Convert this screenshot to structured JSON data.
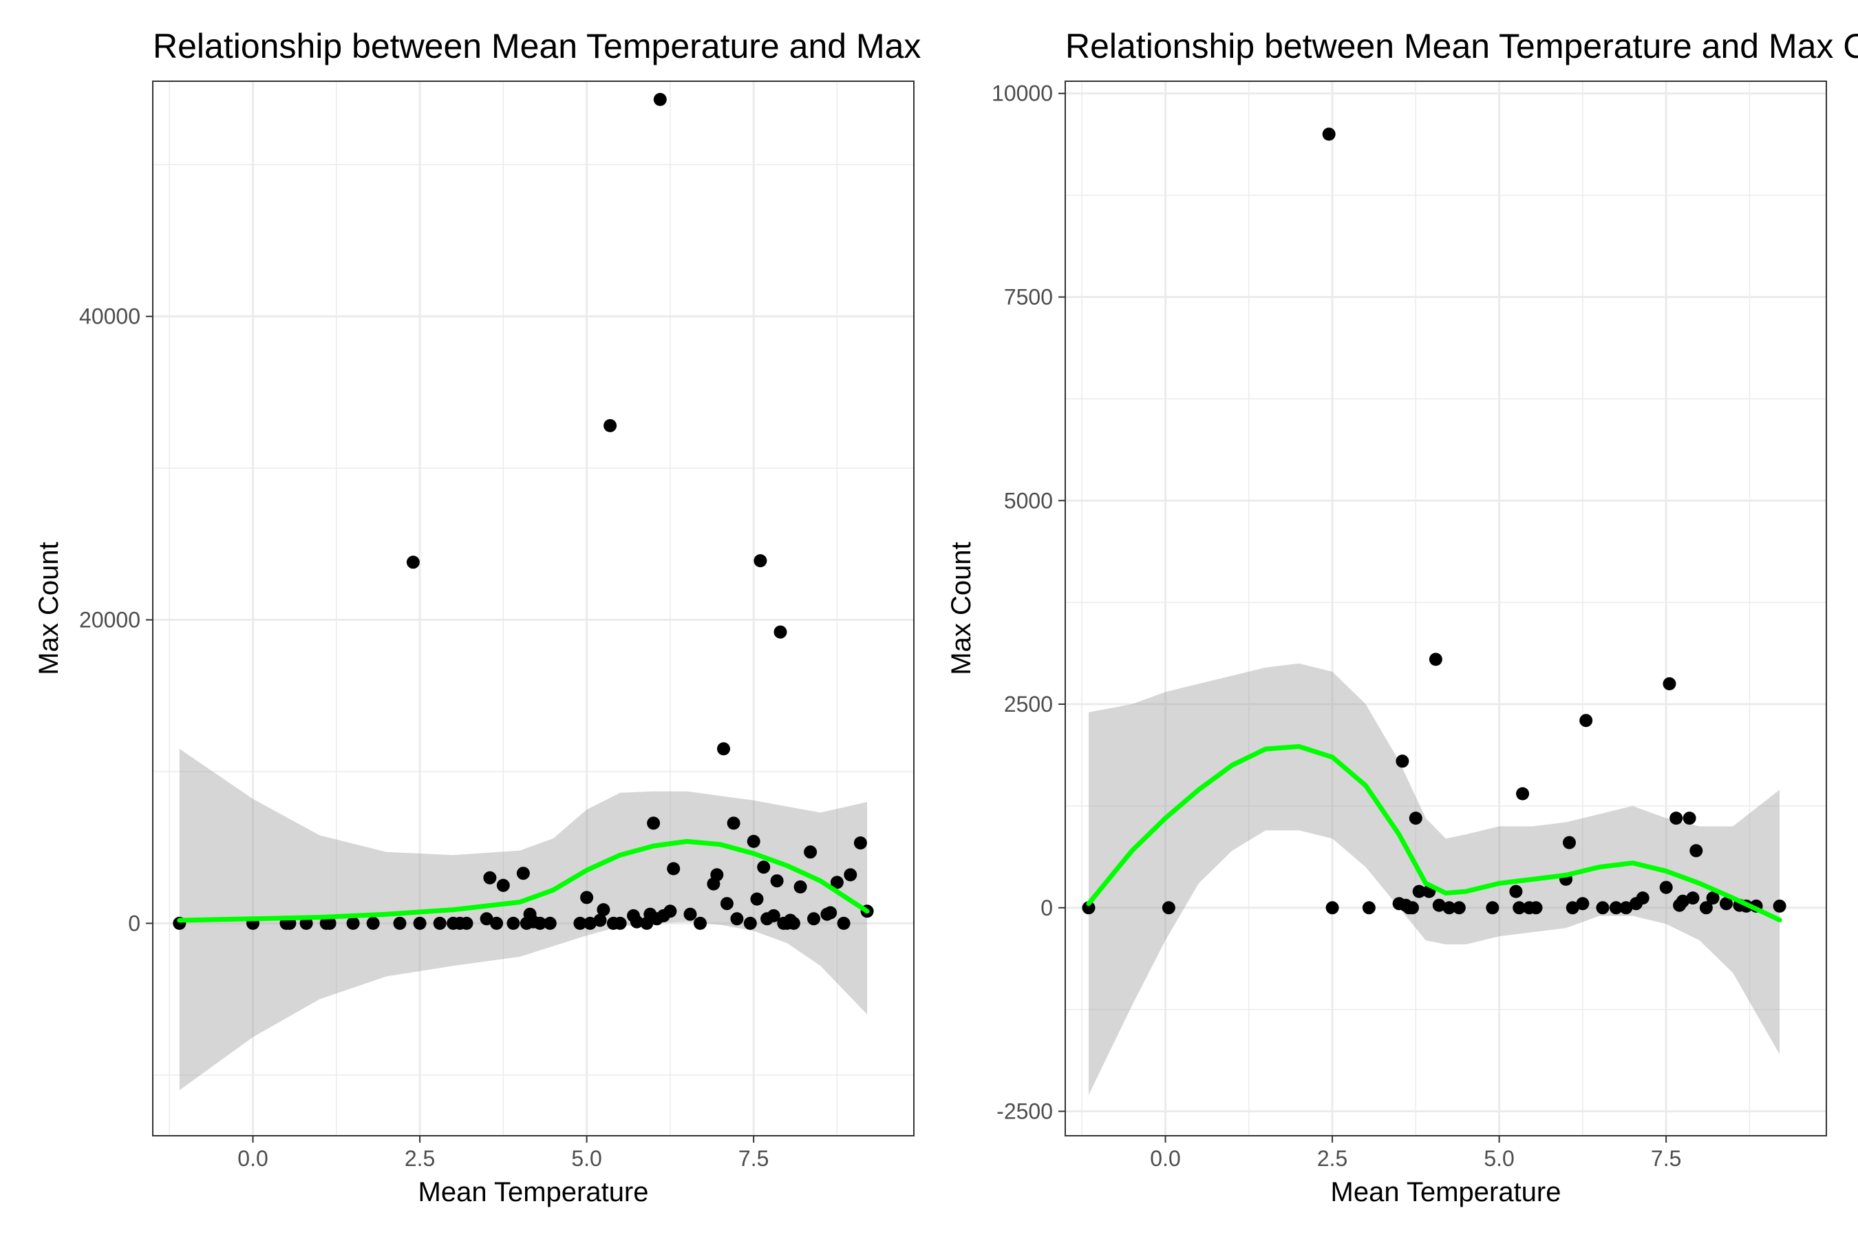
{
  "chart_data": [
    {
      "type": "scatter",
      "title": "Relationship between Mean Temperature and Max Count",
      "xlabel": "Mean Temperature",
      "ylabel": "Max Count",
      "xlim": [
        -1.5,
        9.9
      ],
      "ylim": [
        -14000,
        55500
      ],
      "x_ticks": [
        0.0,
        2.5,
        5.0,
        7.5
      ],
      "x_tick_labels": [
        "0.0",
        "2.5",
        "5.0",
        "7.5"
      ],
      "y_ticks": [
        0,
        20000,
        40000
      ],
      "y_tick_labels": [
        "0",
        "20000",
        "40000"
      ],
      "grid": true,
      "legend": "none",
      "colors": {
        "points": "#000000",
        "smooth_line": "#00ff00",
        "confidence_band": "#999999",
        "panel_border": "#333333",
        "grid": "#ebebeb"
      },
      "points": [
        [
          -1.1,
          0
        ],
        [
          0.0,
          0
        ],
        [
          0.5,
          0
        ],
        [
          0.55,
          0
        ],
        [
          0.8,
          0
        ],
        [
          1.1,
          0
        ],
        [
          1.15,
          0
        ],
        [
          1.5,
          0
        ],
        [
          1.8,
          0
        ],
        [
          2.2,
          0
        ],
        [
          2.4,
          23800
        ],
        [
          2.5,
          0
        ],
        [
          2.8,
          0
        ],
        [
          3.0,
          0
        ],
        [
          3.1,
          0
        ],
        [
          3.2,
          0
        ],
        [
          3.5,
          300
        ],
        [
          3.55,
          3000
        ],
        [
          3.65,
          0
        ],
        [
          3.75,
          2500
        ],
        [
          3.9,
          0
        ],
        [
          4.05,
          3300
        ],
        [
          4.1,
          0
        ],
        [
          4.15,
          600
        ],
        [
          4.2,
          100
        ],
        [
          4.3,
          0
        ],
        [
          4.45,
          0
        ],
        [
          4.9,
          0
        ],
        [
          5.0,
          1700
        ],
        [
          5.05,
          0
        ],
        [
          5.2,
          200
        ],
        [
          5.25,
          900
        ],
        [
          5.35,
          32800
        ],
        [
          5.4,
          0
        ],
        [
          5.5,
          0
        ],
        [
          5.7,
          500
        ],
        [
          5.75,
          100
        ],
        [
          5.9,
          0
        ],
        [
          5.95,
          600
        ],
        [
          6.0,
          6600
        ],
        [
          6.05,
          300
        ],
        [
          6.1,
          54300
        ],
        [
          6.15,
          500
        ],
        [
          6.25,
          800
        ],
        [
          6.3,
          3600
        ],
        [
          6.55,
          600
        ],
        [
          6.7,
          0
        ],
        [
          6.9,
          2600
        ],
        [
          6.95,
          3200
        ],
        [
          7.05,
          11500
        ],
        [
          7.1,
          1300
        ],
        [
          7.2,
          6600
        ],
        [
          7.25,
          300
        ],
        [
          7.45,
          0
        ],
        [
          7.5,
          5400
        ],
        [
          7.55,
          1600
        ],
        [
          7.6,
          23900
        ],
        [
          7.65,
          3700
        ],
        [
          7.7,
          300
        ],
        [
          7.8,
          500
        ],
        [
          7.85,
          2800
        ],
        [
          7.9,
          19200
        ],
        [
          7.95,
          0
        ],
        [
          8.0,
          0
        ],
        [
          8.05,
          200
        ],
        [
          8.1,
          0
        ],
        [
          8.2,
          2400
        ],
        [
          8.35,
          4700
        ],
        [
          8.4,
          300
        ],
        [
          8.6,
          600
        ],
        [
          8.65,
          700
        ],
        [
          8.75,
          2700
        ],
        [
          8.85,
          0
        ],
        [
          8.95,
          3200
        ],
        [
          9.1,
          5300
        ],
        [
          9.2,
          800
        ]
      ],
      "smooth": {
        "x": [
          -1.1,
          0.0,
          1.0,
          2.0,
          3.0,
          4.0,
          4.5,
          5.0,
          5.5,
          6.0,
          6.5,
          7.0,
          7.5,
          8.0,
          8.5,
          9.2
        ],
        "y": [
          200,
          300,
          400,
          600,
          900,
          1400,
          2200,
          3500,
          4500,
          5100,
          5400,
          5200,
          4600,
          3800,
          2800,
          800
        ],
        "lower": [
          -11000,
          -7500,
          -5000,
          -3500,
          -2800,
          -2200,
          -1500,
          -800,
          -200,
          0,
          100,
          -100,
          -500,
          -1300,
          -2800,
          -6000
        ],
        "upper": [
          11500,
          8200,
          5800,
          4700,
          4500,
          4800,
          5600,
          7500,
          8600,
          8700,
          8700,
          8400,
          8100,
          7700,
          7300,
          8000
        ]
      }
    },
    {
      "type": "scatter",
      "title": "Relationship between Mean Temperature and Max Count",
      "xlabel": "Mean Temperature",
      "ylabel": "Max Count",
      "xlim": [
        -1.5,
        9.9
      ],
      "ylim": [
        -2800,
        10150
      ],
      "x_ticks": [
        0.0,
        2.5,
        5.0,
        7.5
      ],
      "x_tick_labels": [
        "0.0",
        "2.5",
        "5.0",
        "7.5"
      ],
      "y_ticks": [
        -2500,
        0,
        2500,
        5000,
        7500,
        10000
      ],
      "y_tick_labels": [
        "-2500",
        "0",
        "2500",
        "5000",
        "7500",
        "10000"
      ],
      "grid": true,
      "legend": "none",
      "colors": {
        "points": "#000000",
        "smooth_line": "#00ff00",
        "confidence_band": "#999999",
        "panel_border": "#333333",
        "grid": "#ebebeb"
      },
      "points": [
        [
          -1.15,
          0
        ],
        [
          0.05,
          0
        ],
        [
          2.45,
          9500
        ],
        [
          2.5,
          0
        ],
        [
          3.05,
          0
        ],
        [
          3.5,
          50
        ],
        [
          3.55,
          1800
        ],
        [
          3.6,
          30
        ],
        [
          3.65,
          0
        ],
        [
          3.7,
          0
        ],
        [
          3.75,
          1100
        ],
        [
          3.8,
          200
        ],
        [
          3.95,
          200
        ],
        [
          4.05,
          3050
        ],
        [
          4.1,
          30
        ],
        [
          4.25,
          0
        ],
        [
          4.4,
          0
        ],
        [
          4.9,
          0
        ],
        [
          5.25,
          200
        ],
        [
          5.3,
          0
        ],
        [
          5.35,
          1400
        ],
        [
          5.45,
          0
        ],
        [
          5.55,
          0
        ],
        [
          6.0,
          350
        ],
        [
          6.05,
          800
        ],
        [
          6.1,
          0
        ],
        [
          6.25,
          50
        ],
        [
          6.3,
          2300
        ],
        [
          6.55,
          0
        ],
        [
          6.75,
          0
        ],
        [
          6.9,
          0
        ],
        [
          7.05,
          50
        ],
        [
          7.15,
          120
        ],
        [
          7.5,
          250
        ],
        [
          7.55,
          2750
        ],
        [
          7.65,
          1100
        ],
        [
          7.7,
          30
        ],
        [
          7.75,
          80
        ],
        [
          7.85,
          1100
        ],
        [
          7.9,
          120
        ],
        [
          7.95,
          700
        ],
        [
          8.1,
          0
        ],
        [
          8.2,
          120
        ],
        [
          8.4,
          50
        ],
        [
          8.6,
          30
        ],
        [
          8.7,
          20
        ],
        [
          8.85,
          20
        ],
        [
          9.2,
          20
        ]
      ],
      "smooth": {
        "x": [
          -1.15,
          -0.5,
          0.0,
          0.5,
          1.0,
          1.5,
          2.0,
          2.5,
          3.0,
          3.5,
          3.9,
          4.2,
          4.5,
          5.0,
          5.5,
          6.0,
          6.5,
          7.0,
          7.5,
          8.0,
          8.5,
          9.2
        ],
        "y": [
          50,
          700,
          1100,
          1450,
          1750,
          1950,
          1980,
          1850,
          1500,
          900,
          300,
          180,
          200,
          300,
          350,
          400,
          500,
          550,
          450,
          300,
          120,
          -150
        ],
        "lower": [
          -2300,
          -1200,
          -400,
          300,
          700,
          950,
          950,
          850,
          500,
          0,
          -400,
          -450,
          -450,
          -350,
          -300,
          -250,
          -100,
          -100,
          -200,
          -400,
          -800,
          -1800
        ],
        "upper": [
          2400,
          2500,
          2650,
          2750,
          2850,
          2950,
          3000,
          2900,
          2500,
          1800,
          1100,
          850,
          900,
          1000,
          1000,
          1050,
          1150,
          1250,
          1100,
          1000,
          1000,
          1450
        ]
      }
    }
  ]
}
